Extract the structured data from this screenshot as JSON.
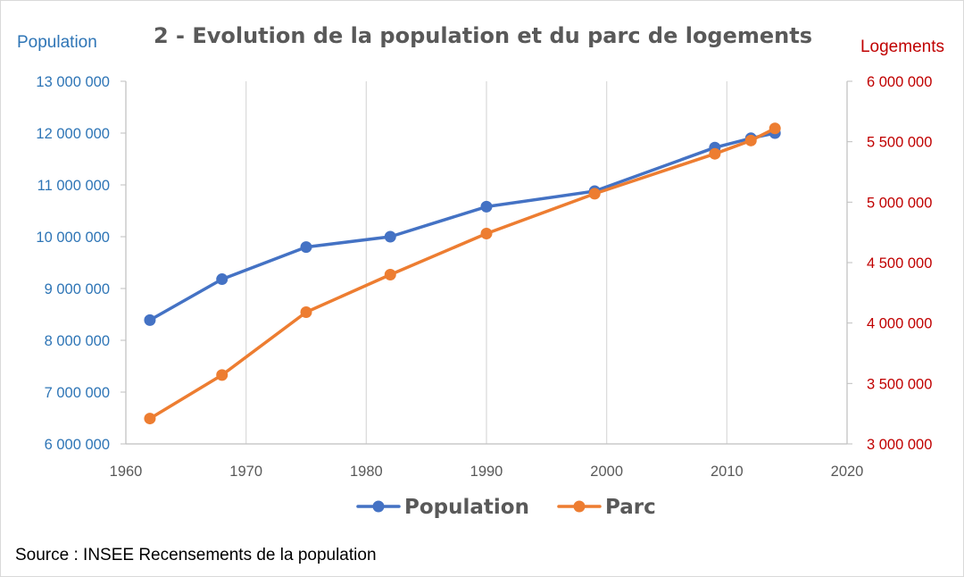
{
  "chart_data": {
    "type": "line",
    "title": "2 - Evolution de la population et du parc de logements",
    "ylabel_left": "Population",
    "ylabel_right": "Logements",
    "xlim": [
      1960,
      2020
    ],
    "ylim_left": [
      6000000,
      13000000
    ],
    "ylim_right": [
      3000000,
      6000000
    ],
    "x_ticks": [
      "1960",
      "1970",
      "1980",
      "1990",
      "2000",
      "2010",
      "2020"
    ],
    "y_ticks_left": [
      "6 000 000",
      "7 000 000",
      "8 000 000",
      "9 000 000",
      "10 000 000",
      "11 000 000",
      "12 000 000",
      "13 000 000"
    ],
    "y_ticks_right": [
      "3 000 000",
      "3 500 000",
      "4 000 000",
      "4 500 000",
      "5 000 000",
      "5 500 000",
      "6 000 000"
    ],
    "grid": "vertical",
    "legend_position": "bottom",
    "series": [
      {
        "name": "Population",
        "axis": "left",
        "color": "#4472c4",
        "x": [
          1962,
          1968,
          1975,
          1982,
          1990,
          1999,
          2009,
          2012,
          2014
        ],
        "values": [
          8390000,
          9180000,
          9800000,
          10000000,
          10580000,
          10880000,
          11720000,
          11900000,
          12000000
        ]
      },
      {
        "name": "Parc",
        "axis": "right",
        "color": "#ed7d31",
        "x": [
          1962,
          1968,
          1975,
          1982,
          1990,
          1999,
          2009,
          2012,
          2014
        ],
        "values": [
          3210000,
          3570000,
          4090000,
          4400000,
          4740000,
          5070000,
          5400000,
          5510000,
          5610000
        ]
      }
    ],
    "source": "Source : INSEE Recensements de la population"
  }
}
